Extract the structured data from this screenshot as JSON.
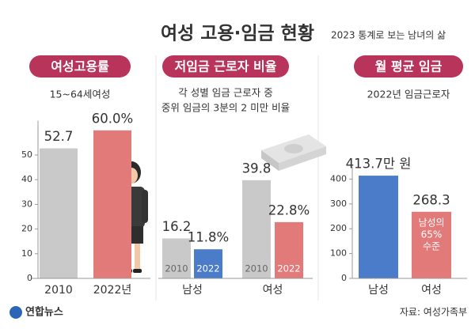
{
  "header": {
    "title": "여성 고용·임금 현황",
    "subtitle": "2023 통계로 보는 남녀의 삶"
  },
  "chart_data": [
    {
      "type": "bar",
      "title": "여성고용률",
      "subtitle": "15~64세여성",
      "categories": [
        "2010",
        "2022년"
      ],
      "values": [
        52.7,
        60.0
      ],
      "value_labels": [
        "52.7",
        "60.0%"
      ],
      "colors": [
        "#c9c9c9",
        "#e27a7a"
      ],
      "ylim": [
        0,
        62
      ],
      "yticks": [
        0,
        10,
        20,
        30,
        40,
        50
      ]
    },
    {
      "type": "grouped-bar",
      "title": "저임금 근로자 비율",
      "subtitle": [
        "각 성별 임금 근로자 중",
        "중위 임금의 3분의 2 미만 비율"
      ],
      "categories": [
        "남성",
        "여성"
      ],
      "ylim": [
        0,
        62
      ],
      "series": [
        {
          "name": "2010",
          "colors": [
            "#c9c9c9",
            "#c9c9c9"
          ],
          "values": [
            16.2,
            39.8
          ],
          "value_labels": [
            "16.2",
            "39.8"
          ]
        },
        {
          "name": "2022",
          "colors": [
            "#4a7cc9",
            "#e27a7a"
          ],
          "values": [
            11.8,
            22.8
          ],
          "value_labels": [
            "11.8%",
            "22.8%"
          ]
        }
      ]
    },
    {
      "type": "bar",
      "title": "월 평균 임금",
      "subtitle": "2022년 임금근로자",
      "categories": [
        "남성",
        "여성"
      ],
      "values": [
        413.7,
        268.3
      ],
      "value_labels": [
        "413.7만 원",
        "268.3"
      ],
      "colors": [
        "#4a7cc9",
        "#e27a7a"
      ],
      "ylim": [
        0,
        430
      ],
      "yticks": [
        0,
        100,
        200,
        300,
        400
      ],
      "annotation": [
        "남성의",
        "65%",
        "수준"
      ]
    }
  ],
  "footer": {
    "logo": "연합뉴스",
    "source": "자료: 여성가족부"
  }
}
